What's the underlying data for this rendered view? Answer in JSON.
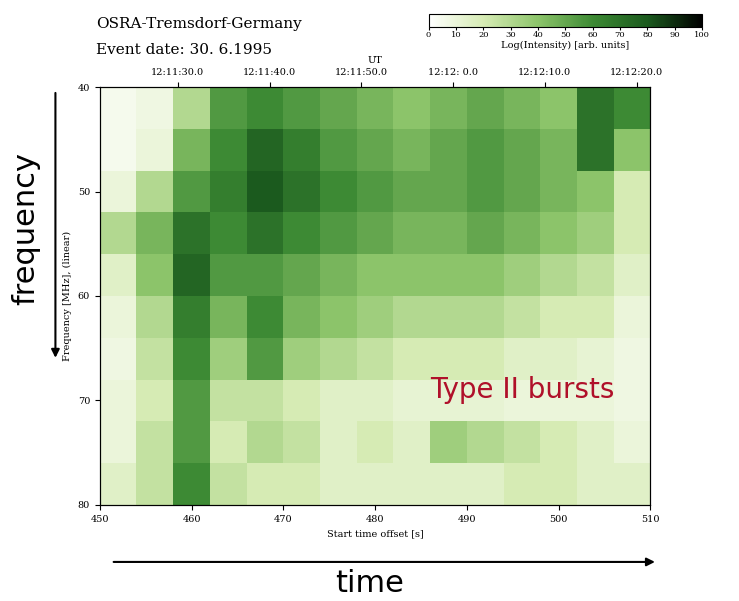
{
  "chart_data": {
    "type": "heatmap",
    "title": "OSRA-Tremsdorf-Germany",
    "subtitle": "Event date: 30. 6.1995",
    "xlabel": "Start time offset [s]",
    "ylabel": "Frequency [MHz], (linear)",
    "x2label": "UT",
    "outer_xlabel": "time",
    "outer_ylabel": "frequency",
    "annotations": [
      "Type II bursts"
    ],
    "x": [
      450,
      454,
      458,
      462,
      466,
      470,
      474,
      478,
      482,
      486,
      490,
      494,
      498,
      502,
      506,
      510
    ],
    "y": [
      40,
      44,
      48,
      52,
      56,
      60,
      64,
      68,
      72,
      76,
      80
    ],
    "cells": [
      [
        5,
        8,
        30,
        55,
        60,
        55,
        50,
        45,
        40,
        45,
        50,
        45,
        40,
        70,
        60
      ],
      [
        5,
        10,
        45,
        60,
        75,
        65,
        55,
        50,
        45,
        50,
        55,
        50,
        45,
        70,
        40
      ],
      [
        10,
        30,
        55,
        65,
        80,
        70,
        60,
        55,
        50,
        50,
        55,
        50,
        45,
        40,
        20
      ],
      [
        30,
        45,
        70,
        60,
        70,
        60,
        55,
        50,
        45,
        45,
        50,
        45,
        40,
        35,
        20
      ],
      [
        15,
        40,
        75,
        55,
        55,
        50,
        45,
        40,
        40,
        40,
        40,
        35,
        30,
        25,
        15
      ],
      [
        10,
        30,
        65,
        45,
        60,
        45,
        40,
        35,
        30,
        30,
        30,
        25,
        20,
        20,
        10
      ],
      [
        8,
        25,
        60,
        35,
        55,
        35,
        30,
        25,
        20,
        20,
        20,
        15,
        15,
        12,
        8
      ],
      [
        10,
        20,
        55,
        25,
        25,
        20,
        15,
        15,
        12,
        12,
        12,
        10,
        10,
        10,
        8
      ],
      [
        10,
        25,
        55,
        20,
        30,
        25,
        15,
        20,
        15,
        35,
        30,
        25,
        20,
        15,
        10
      ],
      [
        15,
        25,
        60,
        25,
        20,
        20,
        15,
        15,
        15,
        15,
        15,
        20,
        20,
        15,
        15
      ]
    ],
    "xlim": [
      450,
      510
    ],
    "xticks": [
      450,
      460,
      470,
      480,
      490,
      500,
      510
    ],
    "ylim": [
      80,
      40
    ],
    "yticks": [
      40,
      50,
      60,
      70,
      80
    ],
    "x2ticks": [
      {
        "value": 458.5,
        "label": "12:11:30.0"
      },
      {
        "value": 468.5,
        "label": "12:11:40.0"
      },
      {
        "value": 478.5,
        "label": "12:11:50.0"
      },
      {
        "value": 488.5,
        "label": "12:12: 0.0"
      },
      {
        "value": 498.5,
        "label": "12:12:10.0"
      },
      {
        "value": 508.5,
        "label": "12:12:20.0"
      }
    ],
    "colorbar_label": "Log(Intensity) [arb. units]",
    "colorbar_range": [
      0,
      100
    ],
    "colorbar_ticks": [
      0,
      10,
      20,
      30,
      40,
      50,
      60,
      70,
      80,
      90,
      100
    ],
    "grid": false
  }
}
